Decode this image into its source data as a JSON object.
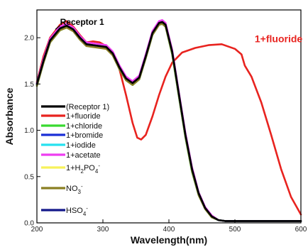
{
  "chart_data": {
    "type": "line",
    "xlabel": "Wavelength(nm)",
    "ylabel": "Absorbance",
    "xlim": [
      200,
      600
    ],
    "ylim": [
      0.0,
      2.3
    ],
    "x_ticks": [
      "200",
      "300",
      "400",
      "500",
      "600"
    ],
    "y_ticks": [
      "0.0",
      "0.5",
      "1.0",
      "1.5",
      "2.0"
    ],
    "grid": false,
    "legend_position": "left",
    "annotations": [
      {
        "text": "Receptor 1",
        "x": 248,
        "y": 2.17,
        "color": "#000000"
      },
      {
        "text": "1+fluoride",
        "x": 530,
        "y": 1.99,
        "color": "#e8231f"
      }
    ],
    "series": [
      {
        "name": "(Receptor 1)",
        "legend_main": "(Receptor 1)",
        "legend_sub": "",
        "legend_sup": "",
        "color": "#000000",
        "x": [
          200,
          210,
          220,
          235,
          245,
          255,
          265,
          275,
          285,
          295,
          305,
          315,
          325,
          335,
          345,
          355,
          365,
          375,
          385,
          390,
          395,
          405,
          415,
          425,
          435,
          445,
          455,
          465,
          475,
          485,
          495,
          510,
          530,
          560,
          600
        ],
        "y": [
          1.5,
          1.75,
          1.97,
          2.1,
          2.13,
          2.09,
          2.0,
          1.93,
          1.92,
          1.91,
          1.9,
          1.83,
          1.68,
          1.56,
          1.51,
          1.57,
          1.8,
          2.05,
          2.16,
          2.17,
          2.14,
          1.85,
          1.4,
          0.95,
          0.58,
          0.32,
          0.16,
          0.07,
          0.03,
          0.02,
          0.02,
          0.02,
          0.02,
          0.02,
          0.02
        ]
      },
      {
        "name": "1+fluoride",
        "legend_main": "1+fluoride",
        "legend_sub": "",
        "legend_sup": "",
        "color": "#e8231f",
        "x": [
          200,
          210,
          220,
          235,
          245,
          255,
          265,
          275,
          285,
          295,
          305,
          315,
          325,
          335,
          345,
          352,
          358,
          365,
          375,
          385,
          395,
          405,
          420,
          440,
          460,
          480,
          500,
          510,
          515,
          525,
          540,
          555,
          570,
          585,
          600
        ],
        "y": [
          1.52,
          1.8,
          2.0,
          2.14,
          2.18,
          2.12,
          2.03,
          1.95,
          1.96,
          1.95,
          1.91,
          1.84,
          1.66,
          1.38,
          1.08,
          0.92,
          0.9,
          0.95,
          1.15,
          1.38,
          1.58,
          1.73,
          1.84,
          1.89,
          1.92,
          1.93,
          1.88,
          1.82,
          1.7,
          1.58,
          1.3,
          0.95,
          0.58,
          0.28,
          0.09
        ]
      },
      {
        "name": "1+chloride",
        "legend_main": "1+chloride",
        "legend_sub": "",
        "legend_sup": "",
        "color": "#39d930",
        "x": [
          200,
          210,
          220,
          235,
          245,
          255,
          265,
          275,
          285,
          295,
          305,
          315,
          325,
          335,
          345,
          355,
          365,
          375,
          385,
          390,
          395,
          405,
          415,
          425,
          435,
          445,
          455,
          465,
          475,
          485,
          495,
          510,
          530,
          560,
          600
        ],
        "y": [
          1.48,
          1.73,
          1.95,
          2.08,
          2.11,
          2.08,
          1.99,
          1.92,
          1.91,
          1.9,
          1.89,
          1.81,
          1.66,
          1.54,
          1.49,
          1.55,
          1.78,
          2.03,
          2.14,
          2.15,
          2.12,
          1.82,
          1.37,
          0.92,
          0.55,
          0.3,
          0.15,
          0.06,
          0.03,
          0.02,
          0.02,
          0.02,
          0.02,
          0.02,
          0.02
        ]
      },
      {
        "name": "1+bromide",
        "legend_main": "1+bromide",
        "legend_sub": "",
        "legend_sup": "",
        "color": "#1b2fd6",
        "x": [
          200,
          210,
          220,
          235,
          245,
          255,
          265,
          275,
          285,
          295,
          305,
          315,
          325,
          335,
          345,
          355,
          365,
          375,
          385,
          390,
          395,
          405,
          415,
          425,
          435,
          445,
          455,
          465,
          475,
          485,
          495,
          510,
          530,
          560,
          600
        ],
        "y": [
          1.49,
          1.74,
          1.96,
          2.09,
          2.12,
          2.08,
          1.99,
          1.92,
          1.91,
          1.9,
          1.89,
          1.82,
          1.67,
          1.55,
          1.5,
          1.56,
          1.79,
          2.04,
          2.15,
          2.16,
          2.13,
          1.84,
          1.39,
          0.94,
          0.57,
          0.31,
          0.15,
          0.07,
          0.03,
          0.02,
          0.02,
          0.02,
          0.02,
          0.02,
          0.02
        ]
      },
      {
        "name": "1+iodide",
        "legend_main": "1+iodide",
        "legend_sub": "",
        "legend_sup": "",
        "color": "#27e1ef",
        "x": [
          200,
          210,
          220,
          235,
          245,
          255,
          265,
          275,
          285,
          295,
          305,
          315,
          325,
          335,
          345,
          355,
          365,
          375,
          385,
          390,
          395,
          405,
          415,
          425,
          435,
          445,
          455,
          465,
          475,
          485,
          495,
          510,
          530,
          560,
          600
        ],
        "y": [
          1.5,
          1.75,
          1.97,
          2.1,
          2.13,
          2.09,
          2.0,
          1.93,
          1.92,
          1.91,
          1.9,
          1.83,
          1.68,
          1.56,
          1.51,
          1.57,
          1.8,
          2.05,
          2.16,
          2.17,
          2.14,
          1.85,
          1.4,
          0.95,
          0.58,
          0.32,
          0.16,
          0.07,
          0.03,
          0.02,
          0.02,
          0.02,
          0.02,
          0.02,
          0.02
        ]
      },
      {
        "name": "1+acetate",
        "legend_main": "1+acetate",
        "legend_sub": "",
        "legend_sup": "",
        "color": "#ee3df0",
        "x": [
          200,
          210,
          220,
          235,
          245,
          255,
          265,
          275,
          285,
          295,
          305,
          315,
          325,
          335,
          345,
          355,
          365,
          375,
          385,
          390,
          395,
          405,
          415,
          425,
          435,
          445,
          455,
          465,
          475,
          485,
          495,
          510,
          530,
          560,
          600
        ],
        "y": [
          1.51,
          1.77,
          1.99,
          2.12,
          2.15,
          2.11,
          2.02,
          1.95,
          1.94,
          1.93,
          1.92,
          1.85,
          1.7,
          1.58,
          1.53,
          1.59,
          1.82,
          2.07,
          2.18,
          2.19,
          2.16,
          1.87,
          1.42,
          0.97,
          0.6,
          0.33,
          0.17,
          0.08,
          0.03,
          0.02,
          0.02,
          0.02,
          0.02,
          0.02,
          0.02
        ]
      },
      {
        "name": "1+H2PO4-",
        "legend_main": "1+H",
        "legend_sub": "2",
        "legend_mid": "PO",
        "legend_sub2": "4",
        "legend_sup": "-",
        "color": "#f7f25a",
        "x": [
          200,
          210,
          220,
          235,
          245,
          255,
          265,
          275,
          285,
          295,
          305,
          315,
          325,
          335,
          345,
          355,
          365,
          375,
          385,
          390,
          395,
          405,
          415,
          425,
          435,
          445,
          455,
          465,
          475,
          485,
          495,
          510,
          530,
          560,
          600
        ],
        "y": [
          1.49,
          1.74,
          1.96,
          2.09,
          2.12,
          2.08,
          1.99,
          1.92,
          1.91,
          1.9,
          1.89,
          1.82,
          1.67,
          1.55,
          1.5,
          1.56,
          1.79,
          2.04,
          2.15,
          2.16,
          2.13,
          1.84,
          1.39,
          0.94,
          0.57,
          0.31,
          0.15,
          0.07,
          0.03,
          0.02,
          0.02,
          0.02,
          0.02,
          0.02,
          0.02
        ]
      },
      {
        "name": "NO3-",
        "legend_main": "NO",
        "legend_sub": "3",
        "legend_sup": "-",
        "color": "#8a7f22",
        "x": [
          200,
          210,
          220,
          235,
          245,
          255,
          265,
          275,
          285,
          295,
          305,
          315,
          325,
          335,
          345,
          355,
          365,
          375,
          385,
          390,
          395,
          405,
          415,
          425,
          435,
          445,
          455,
          465,
          475,
          485,
          495,
          510,
          530,
          560,
          600
        ],
        "y": [
          1.48,
          1.73,
          1.95,
          2.08,
          2.11,
          2.07,
          1.98,
          1.91,
          1.9,
          1.89,
          1.88,
          1.81,
          1.66,
          1.54,
          1.49,
          1.55,
          1.78,
          2.03,
          2.14,
          2.15,
          2.12,
          1.83,
          1.38,
          0.93,
          0.56,
          0.3,
          0.15,
          0.06,
          0.03,
          0.02,
          0.02,
          0.02,
          0.02,
          0.02,
          0.02
        ]
      },
      {
        "name": "HSO4-",
        "legend_main": "HSO",
        "legend_sub": "4",
        "legend_sup": "-",
        "color": "#13188a",
        "x": [
          200,
          210,
          220,
          235,
          245,
          255,
          265,
          275,
          285,
          295,
          305,
          315,
          325,
          335,
          345,
          355,
          365,
          375,
          385,
          390,
          395,
          405,
          415,
          425,
          435,
          445,
          455,
          465,
          475,
          485,
          495,
          510,
          530,
          560,
          600
        ],
        "y": [
          1.5,
          1.75,
          1.97,
          2.1,
          2.13,
          2.09,
          2.0,
          1.93,
          1.92,
          1.91,
          1.9,
          1.83,
          1.68,
          1.56,
          1.51,
          1.57,
          1.8,
          2.05,
          2.16,
          2.17,
          2.14,
          1.85,
          1.4,
          0.95,
          0.58,
          0.32,
          0.16,
          0.07,
          0.03,
          0.02,
          0.02,
          0.02,
          0.02,
          0.02,
          0.02
        ]
      }
    ]
  }
}
